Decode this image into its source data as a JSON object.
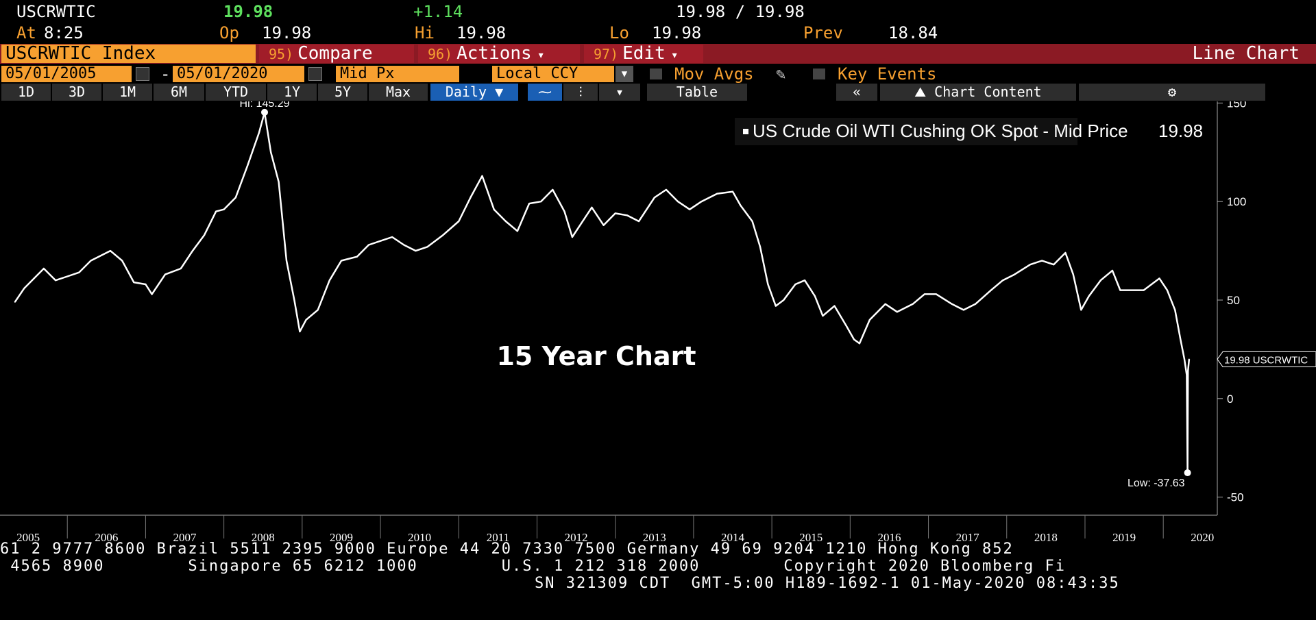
{
  "quote": {
    "ticker": "USCRWTIC",
    "last": "19.98",
    "change": "+1.14",
    "bid_ask": "19.98 / 19.98",
    "at_label": "At",
    "time": "8:25",
    "open_label": "Op",
    "open": "19.98",
    "high_label": "Hi",
    "high": "19.98",
    "low_label": "Lo",
    "low": "19.98",
    "prev_label": "Prev",
    "prev": "18.84"
  },
  "command_bar": {
    "security": "USCRWTIC Index",
    "compare_num": "95)",
    "compare_label": "Compare",
    "actions_num": "96)",
    "actions_label": "Actions",
    "edit_num": "97)",
    "edit_label": "Edit",
    "chart_type": "Line Chart"
  },
  "options_bar": {
    "start_date": "05/01/2005",
    "date_separator": "-",
    "end_date": "05/01/2020",
    "field": "Mid Px",
    "currency": "Local CCY",
    "mov_avgs": "Mov Avgs",
    "key_events": "Key Events"
  },
  "range_bar": {
    "ranges": [
      "1D",
      "3D",
      "1M",
      "6M",
      "YTD",
      "1Y",
      "5Y",
      "Max"
    ],
    "frequency": "Daily",
    "table_label": "Table",
    "chart_content_label": "Chart Content"
  },
  "chart_data": {
    "type": "line",
    "legend": "US Crude Oil WTI Cushing OK Spot - Mid Price",
    "legend_value": "19.98",
    "annotation": "15 Year Chart",
    "high_label": "Hi: 145.29",
    "low_label": "Low: -37.63",
    "last_label": "19.98 USCRWTIC",
    "ylim": [
      -55,
      155
    ],
    "y_ticks": [
      "150",
      "100",
      "50",
      "0",
      "-50"
    ],
    "x_ticks": [
      "2005",
      "2006",
      "2007",
      "2008",
      "2009",
      "2010",
      "2011",
      "2012",
      "2013",
      "2014",
      "2015",
      "2016",
      "2017",
      "2018",
      "2019",
      "2020"
    ],
    "series": [
      {
        "values": [
          {
            "x": 2005.33,
            "y": 49
          },
          {
            "x": 2005.45,
            "y": 56
          },
          {
            "x": 2005.6,
            "y": 62
          },
          {
            "x": 2005.7,
            "y": 66
          },
          {
            "x": 2005.85,
            "y": 60
          },
          {
            "x": 2006.0,
            "y": 62
          },
          {
            "x": 2006.15,
            "y": 64
          },
          {
            "x": 2006.3,
            "y": 70
          },
          {
            "x": 2006.55,
            "y": 75
          },
          {
            "x": 2006.7,
            "y": 70
          },
          {
            "x": 2006.85,
            "y": 59
          },
          {
            "x": 2007.0,
            "y": 58
          },
          {
            "x": 2007.08,
            "y": 53
          },
          {
            "x": 2007.25,
            "y": 63
          },
          {
            "x": 2007.45,
            "y": 66
          },
          {
            "x": 2007.6,
            "y": 75
          },
          {
            "x": 2007.75,
            "y": 83
          },
          {
            "x": 2007.9,
            "y": 95
          },
          {
            "x": 2008.0,
            "y": 96
          },
          {
            "x": 2008.15,
            "y": 102
          },
          {
            "x": 2008.3,
            "y": 118
          },
          {
            "x": 2008.45,
            "y": 135
          },
          {
            "x": 2008.52,
            "y": 145.29
          },
          {
            "x": 2008.6,
            "y": 125
          },
          {
            "x": 2008.7,
            "y": 110
          },
          {
            "x": 2008.8,
            "y": 70
          },
          {
            "x": 2008.9,
            "y": 50
          },
          {
            "x": 2008.97,
            "y": 34
          },
          {
            "x": 2009.05,
            "y": 40
          },
          {
            "x": 2009.2,
            "y": 45
          },
          {
            "x": 2009.35,
            "y": 60
          },
          {
            "x": 2009.5,
            "y": 70
          },
          {
            "x": 2009.7,
            "y": 72
          },
          {
            "x": 2009.85,
            "y": 78
          },
          {
            "x": 2010.0,
            "y": 80
          },
          {
            "x": 2010.15,
            "y": 82
          },
          {
            "x": 2010.3,
            "y": 78
          },
          {
            "x": 2010.45,
            "y": 75
          },
          {
            "x": 2010.6,
            "y": 77
          },
          {
            "x": 2010.8,
            "y": 83
          },
          {
            "x": 2011.0,
            "y": 90
          },
          {
            "x": 2011.15,
            "y": 102
          },
          {
            "x": 2011.3,
            "y": 113
          },
          {
            "x": 2011.45,
            "y": 96
          },
          {
            "x": 2011.6,
            "y": 90
          },
          {
            "x": 2011.75,
            "y": 85
          },
          {
            "x": 2011.9,
            "y": 99
          },
          {
            "x": 2012.05,
            "y": 100
          },
          {
            "x": 2012.2,
            "y": 106
          },
          {
            "x": 2012.35,
            "y": 95
          },
          {
            "x": 2012.45,
            "y": 82
          },
          {
            "x": 2012.55,
            "y": 88
          },
          {
            "x": 2012.7,
            "y": 97
          },
          {
            "x": 2012.85,
            "y": 88
          },
          {
            "x": 2013.0,
            "y": 94
          },
          {
            "x": 2013.15,
            "y": 93
          },
          {
            "x": 2013.3,
            "y": 90
          },
          {
            "x": 2013.5,
            "y": 102
          },
          {
            "x": 2013.65,
            "y": 106
          },
          {
            "x": 2013.8,
            "y": 100
          },
          {
            "x": 2013.95,
            "y": 96
          },
          {
            "x": 2014.1,
            "y": 100
          },
          {
            "x": 2014.3,
            "y": 104
          },
          {
            "x": 2014.5,
            "y": 105
          },
          {
            "x": 2014.6,
            "y": 98
          },
          {
            "x": 2014.75,
            "y": 90
          },
          {
            "x": 2014.85,
            "y": 77
          },
          {
            "x": 2014.95,
            "y": 58
          },
          {
            "x": 2015.05,
            "y": 47
          },
          {
            "x": 2015.15,
            "y": 50
          },
          {
            "x": 2015.3,
            "y": 58
          },
          {
            "x": 2015.42,
            "y": 60
          },
          {
            "x": 2015.55,
            "y": 52
          },
          {
            "x": 2015.65,
            "y": 42
          },
          {
            "x": 2015.8,
            "y": 47
          },
          {
            "x": 2015.95,
            "y": 37
          },
          {
            "x": 2016.05,
            "y": 30
          },
          {
            "x": 2016.12,
            "y": 28
          },
          {
            "x": 2016.25,
            "y": 40
          },
          {
            "x": 2016.45,
            "y": 48
          },
          {
            "x": 2016.6,
            "y": 44
          },
          {
            "x": 2016.8,
            "y": 48
          },
          {
            "x": 2016.95,
            "y": 53
          },
          {
            "x": 2017.1,
            "y": 53
          },
          {
            "x": 2017.3,
            "y": 48
          },
          {
            "x": 2017.45,
            "y": 45
          },
          {
            "x": 2017.6,
            "y": 48
          },
          {
            "x": 2017.8,
            "y": 55
          },
          {
            "x": 2017.95,
            "y": 60
          },
          {
            "x": 2018.1,
            "y": 63
          },
          {
            "x": 2018.3,
            "y": 68
          },
          {
            "x": 2018.45,
            "y": 70
          },
          {
            "x": 2018.6,
            "y": 68
          },
          {
            "x": 2018.75,
            "y": 74
          },
          {
            "x": 2018.85,
            "y": 63
          },
          {
            "x": 2018.95,
            "y": 45
          },
          {
            "x": 2019.05,
            "y": 52
          },
          {
            "x": 2019.2,
            "y": 60
          },
          {
            "x": 2019.35,
            "y": 65
          },
          {
            "x": 2019.45,
            "y": 55
          },
          {
            "x": 2019.6,
            "y": 55
          },
          {
            "x": 2019.75,
            "y": 55
          },
          {
            "x": 2019.95,
            "y": 61
          },
          {
            "x": 2020.05,
            "y": 55
          },
          {
            "x": 2020.15,
            "y": 45
          },
          {
            "x": 2020.22,
            "y": 30
          },
          {
            "x": 2020.27,
            "y": 20
          },
          {
            "x": 2020.3,
            "y": 12
          },
          {
            "x": 2020.31,
            "y": -37.63
          },
          {
            "x": 2020.315,
            "y": 14
          },
          {
            "x": 2020.33,
            "y": 19.98
          }
        ]
      }
    ]
  },
  "footer": {
    "line1": "61 2 9777 8600 Brazil 5511 2395 9000 Europe 44 20 7330 7500 Germany 49 69 9204 1210 Hong Kong 852",
    "line2": " 4565 8900        Singapore 65 6212 1000        U.S. 1 212 318 2000        Copyright 2020 Bloomberg Fi",
    "line3": "SN 321309 CDT  GMT-5:00 H189-1692-1 01-May-2020 08:43:35"
  }
}
